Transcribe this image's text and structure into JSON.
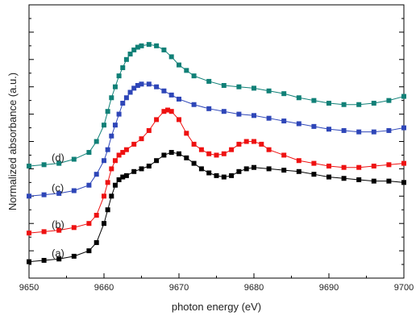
{
  "chart_data": {
    "type": "scatter",
    "title": "",
    "xlabel": "photon energy (eV)",
    "ylabel": "Normalized absorbance (a.u.)",
    "xlim": [
      9650,
      9700
    ],
    "ylim": [
      0,
      1
    ],
    "xticks": [
      "9650",
      "9660",
      "9670",
      "9680",
      "9690",
      "9700"
    ],
    "yticks_labeled": false,
    "grid": false,
    "series": [
      {
        "label": "(a)",
        "color": "#000000",
        "marker": "square",
        "points": [
          [
            9650,
            0.06
          ],
          [
            9652,
            0.065
          ],
          [
            9654,
            0.07
          ],
          [
            9656,
            0.08
          ],
          [
            9658,
            0.1
          ],
          [
            9659,
            0.13
          ],
          [
            9660,
            0.2
          ],
          [
            9660.5,
            0.25
          ],
          [
            9661,
            0.3
          ],
          [
            9661.5,
            0.34
          ],
          [
            9662,
            0.36
          ],
          [
            9662.5,
            0.37
          ],
          [
            9663,
            0.375
          ],
          [
            9664,
            0.39
          ],
          [
            9665,
            0.4
          ],
          [
            9666,
            0.41
          ],
          [
            9667,
            0.43
          ],
          [
            9668,
            0.45
          ],
          [
            9669,
            0.46
          ],
          [
            9670,
            0.455
          ],
          [
            9671,
            0.44
          ],
          [
            9672,
            0.42
          ],
          [
            9673,
            0.4
          ],
          [
            9674,
            0.385
          ],
          [
            9675,
            0.375
          ],
          [
            9676,
            0.37
          ],
          [
            9677,
            0.375
          ],
          [
            9678,
            0.39
          ],
          [
            9679,
            0.4
          ],
          [
            9680,
            0.405
          ],
          [
            9682,
            0.4
          ],
          [
            9684,
            0.395
          ],
          [
            9686,
            0.39
          ],
          [
            9688,
            0.38
          ],
          [
            9690,
            0.37
          ],
          [
            9692,
            0.365
          ],
          [
            9694,
            0.36
          ],
          [
            9696,
            0.355
          ],
          [
            9698,
            0.355
          ],
          [
            9700,
            0.35
          ]
        ]
      },
      {
        "label": "(b)",
        "color": "#ee1111",
        "marker": "square",
        "points": [
          [
            9650,
            0.165
          ],
          [
            9652,
            0.17
          ],
          [
            9654,
            0.175
          ],
          [
            9656,
            0.185
          ],
          [
            9658,
            0.2
          ],
          [
            9659,
            0.23
          ],
          [
            9660,
            0.3
          ],
          [
            9660.5,
            0.35
          ],
          [
            9661,
            0.4
          ],
          [
            9661.5,
            0.43
          ],
          [
            9662,
            0.45
          ],
          [
            9662.5,
            0.46
          ],
          [
            9663,
            0.47
          ],
          [
            9664,
            0.49
          ],
          [
            9665,
            0.51
          ],
          [
            9666,
            0.54
          ],
          [
            9667,
            0.58
          ],
          [
            9668,
            0.61
          ],
          [
            9668.5,
            0.615
          ],
          [
            9669,
            0.61
          ],
          [
            9670,
            0.58
          ],
          [
            9671,
            0.53
          ],
          [
            9672,
            0.49
          ],
          [
            9673,
            0.47
          ],
          [
            9674,
            0.455
          ],
          [
            9675,
            0.45
          ],
          [
            9676,
            0.455
          ],
          [
            9677,
            0.47
          ],
          [
            9678,
            0.49
          ],
          [
            9679,
            0.5
          ],
          [
            9680,
            0.5
          ],
          [
            9681,
            0.49
          ],
          [
            9682,
            0.47
          ],
          [
            9684,
            0.45
          ],
          [
            9686,
            0.43
          ],
          [
            9688,
            0.42
          ],
          [
            9690,
            0.41
          ],
          [
            9692,
            0.405
          ],
          [
            9694,
            0.405
          ],
          [
            9696,
            0.41
          ],
          [
            9698,
            0.415
          ],
          [
            9700,
            0.42
          ]
        ]
      },
      {
        "label": "(c)",
        "color": "#2e46b8",
        "marker": "square",
        "points": [
          [
            9650,
            0.3
          ],
          [
            9652,
            0.305
          ],
          [
            9654,
            0.31
          ],
          [
            9656,
            0.32
          ],
          [
            9658,
            0.34
          ],
          [
            9659,
            0.38
          ],
          [
            9660,
            0.43
          ],
          [
            9660.5,
            0.47
          ],
          [
            9661,
            0.52
          ],
          [
            9661.5,
            0.56
          ],
          [
            9662,
            0.6
          ],
          [
            9662.5,
            0.64
          ],
          [
            9663,
            0.66
          ],
          [
            9663.5,
            0.68
          ],
          [
            9664,
            0.695
          ],
          [
            9664.5,
            0.705
          ],
          [
            9665,
            0.71
          ],
          [
            9666,
            0.71
          ],
          [
            9667,
            0.7
          ],
          [
            9668,
            0.685
          ],
          [
            9669,
            0.67
          ],
          [
            9670,
            0.655
          ],
          [
            9672,
            0.635
          ],
          [
            9674,
            0.62
          ],
          [
            9676,
            0.61
          ],
          [
            9678,
            0.6
          ],
          [
            9680,
            0.595
          ],
          [
            9682,
            0.585
          ],
          [
            9684,
            0.575
          ],
          [
            9686,
            0.565
          ],
          [
            9688,
            0.555
          ],
          [
            9690,
            0.545
          ],
          [
            9692,
            0.54
          ],
          [
            9694,
            0.535
          ],
          [
            9696,
            0.535
          ],
          [
            9698,
            0.54
          ],
          [
            9700,
            0.55
          ]
        ]
      },
      {
        "label": "(d)",
        "color": "#108077",
        "marker": "square",
        "points": [
          [
            9650,
            0.41
          ],
          [
            9652,
            0.415
          ],
          [
            9654,
            0.42
          ],
          [
            9656,
            0.435
          ],
          [
            9658,
            0.46
          ],
          [
            9659,
            0.5
          ],
          [
            9660,
            0.56
          ],
          [
            9660.5,
            0.61
          ],
          [
            9661,
            0.66
          ],
          [
            9661.5,
            0.7
          ],
          [
            9662,
            0.74
          ],
          [
            9662.5,
            0.77
          ],
          [
            9663,
            0.8
          ],
          [
            9663.5,
            0.82
          ],
          [
            9664,
            0.835
          ],
          [
            9664.5,
            0.845
          ],
          [
            9665,
            0.85
          ],
          [
            9666,
            0.855
          ],
          [
            9667,
            0.85
          ],
          [
            9668,
            0.835
          ],
          [
            9669,
            0.81
          ],
          [
            9670,
            0.78
          ],
          [
            9671,
            0.76
          ],
          [
            9672,
            0.74
          ],
          [
            9674,
            0.72
          ],
          [
            9676,
            0.705
          ],
          [
            9678,
            0.7
          ],
          [
            9680,
            0.695
          ],
          [
            9682,
            0.685
          ],
          [
            9684,
            0.675
          ],
          [
            9686,
            0.66
          ],
          [
            9688,
            0.65
          ],
          [
            9690,
            0.64
          ],
          [
            9692,
            0.635
          ],
          [
            9694,
            0.635
          ],
          [
            9696,
            0.64
          ],
          [
            9698,
            0.65
          ],
          [
            9700,
            0.665
          ]
        ]
      }
    ]
  }
}
